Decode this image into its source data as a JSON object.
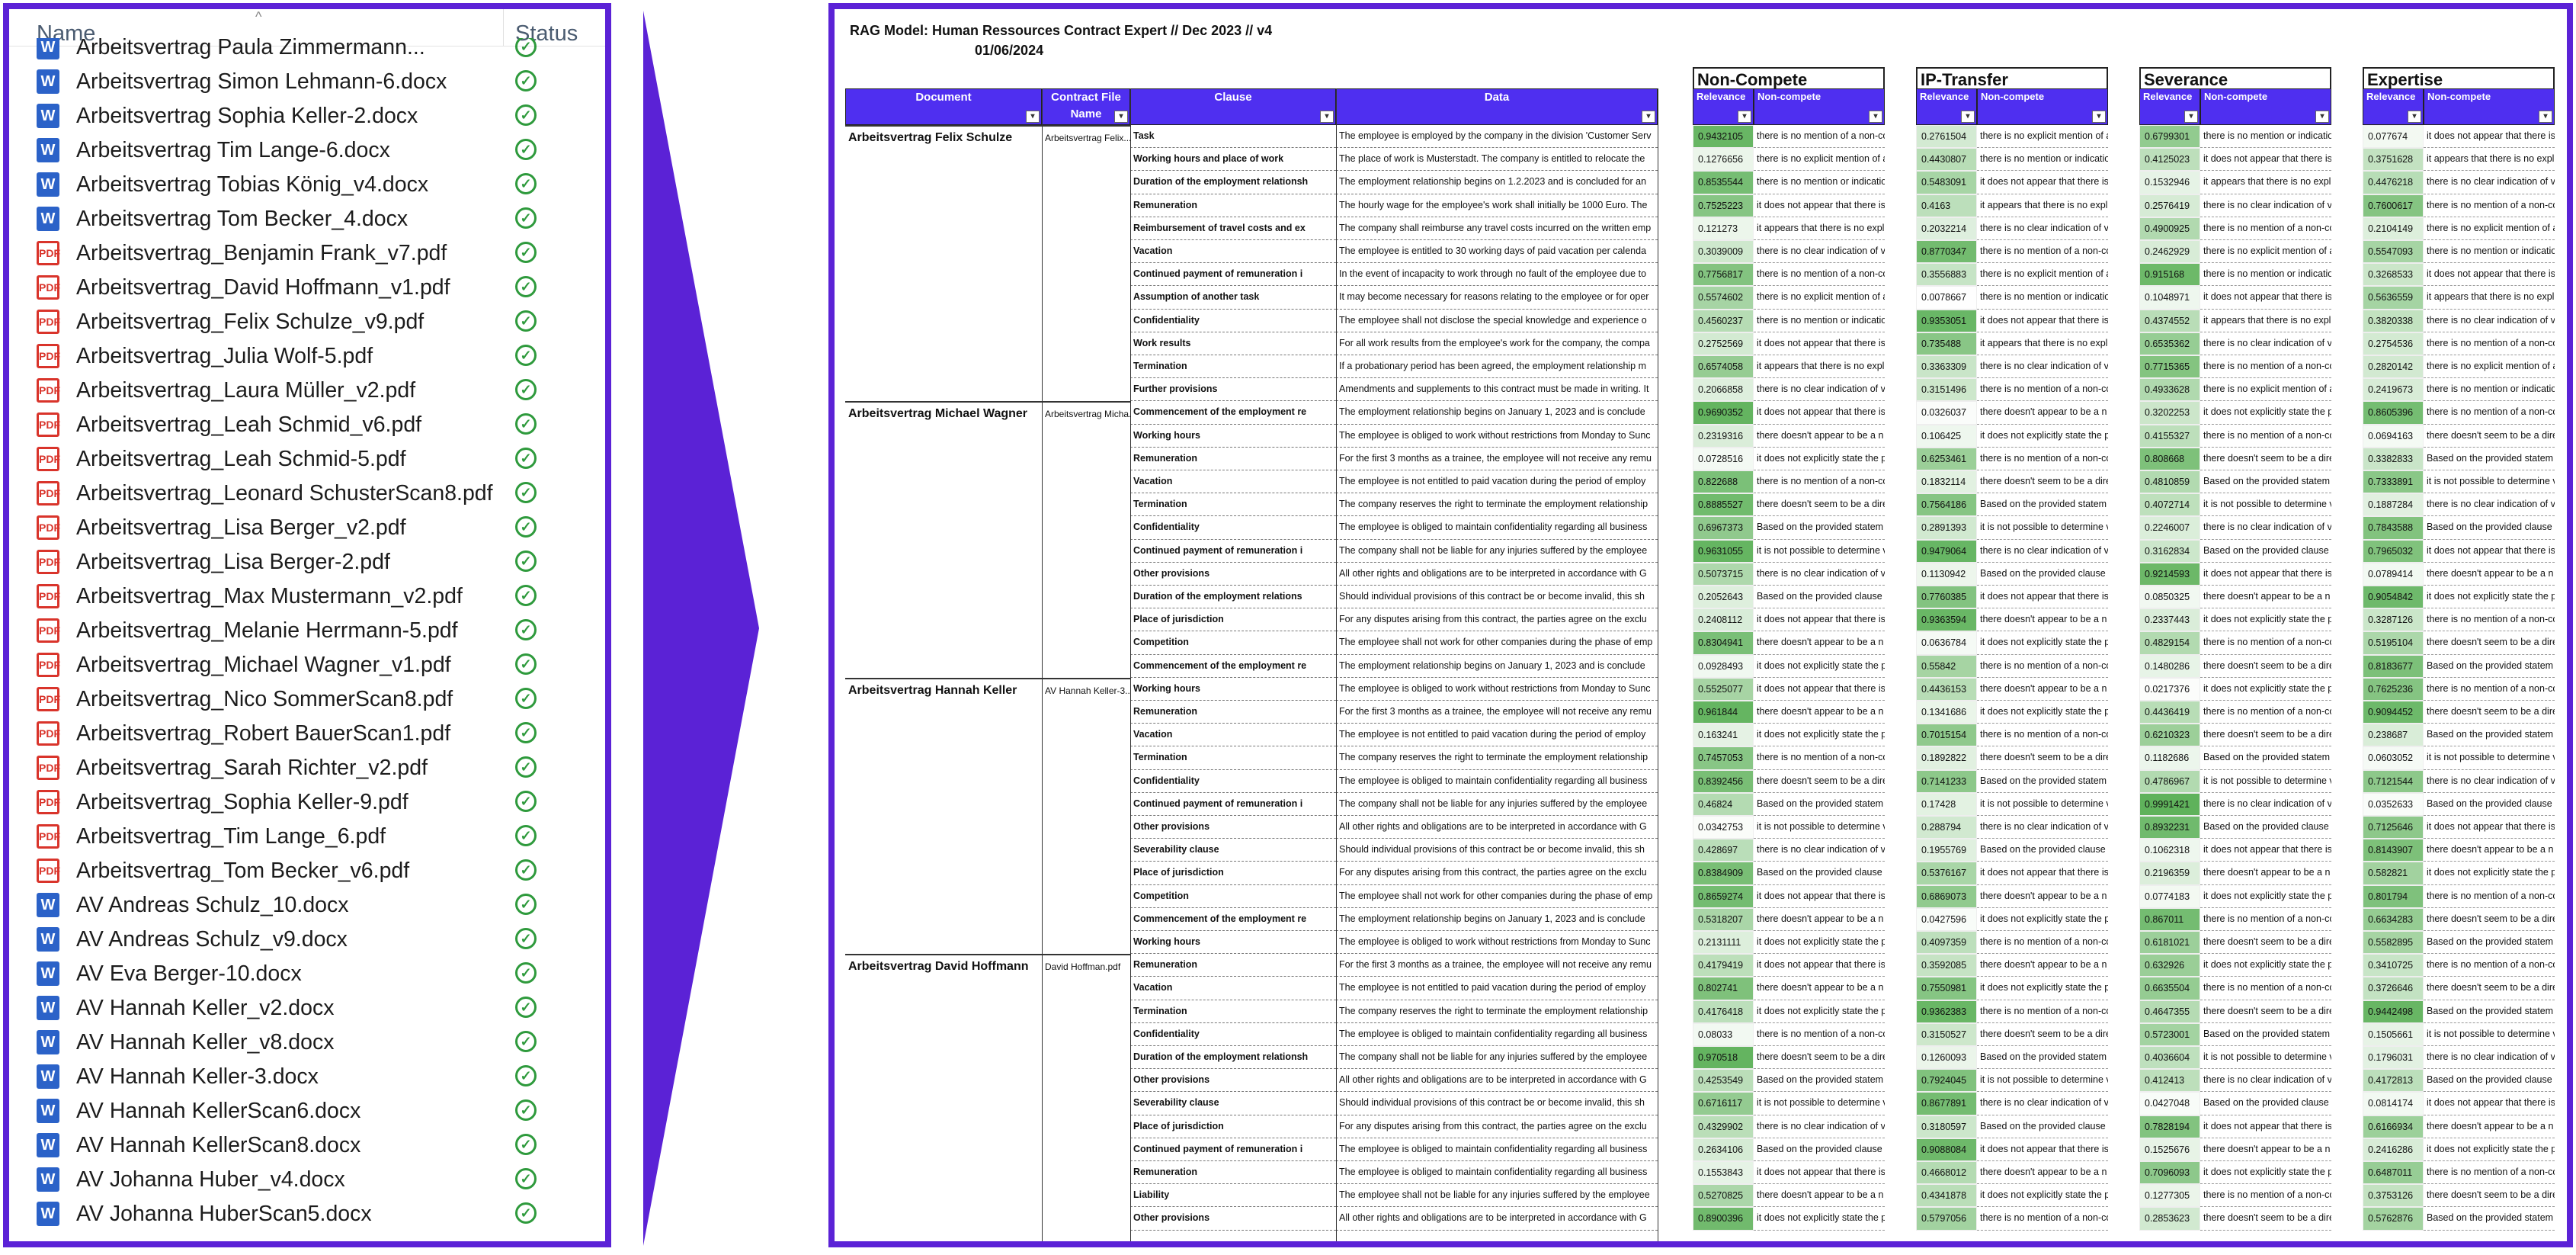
{
  "left_panel": {
    "column_name": "Name",
    "column_status": "Status",
    "files": [
      {
        "name": "Arbeitsvertrag Paula Zimmermann...",
        "type": "docx"
      },
      {
        "name": "Arbeitsvertrag Simon Lehmann-6.docx",
        "type": "docx"
      },
      {
        "name": "Arbeitsvertrag Sophia Keller-2.docx",
        "type": "docx"
      },
      {
        "name": "Arbeitsvertrag Tim Lange-6.docx",
        "type": "docx"
      },
      {
        "name": "Arbeitsvertrag Tobias König_v4.docx",
        "type": "docx"
      },
      {
        "name": "Arbeitsvertrag Tom Becker_4.docx",
        "type": "docx"
      },
      {
        "name": "Arbeitsvertrag_Benjamin Frank_v7.pdf",
        "type": "pdf"
      },
      {
        "name": "Arbeitsvertrag_David Hoffmann_v1.pdf",
        "type": "pdf"
      },
      {
        "name": "Arbeitsvertrag_Felix Schulze_v9.pdf",
        "type": "pdf"
      },
      {
        "name": "Arbeitsvertrag_Julia Wolf-5.pdf",
        "type": "pdf"
      },
      {
        "name": "Arbeitsvertrag_Laura Müller_v2.pdf",
        "type": "pdf"
      },
      {
        "name": "Arbeitsvertrag_Leah Schmid_v6.pdf",
        "type": "pdf"
      },
      {
        "name": "Arbeitsvertrag_Leah Schmid-5.pdf",
        "type": "pdf"
      },
      {
        "name": "Arbeitsvertrag_Leonard SchusterScan8.pdf",
        "type": "pdf"
      },
      {
        "name": "Arbeitsvertrag_Lisa Berger_v2.pdf",
        "type": "pdf"
      },
      {
        "name": "Arbeitsvertrag_Lisa Berger-2.pdf",
        "type": "pdf"
      },
      {
        "name": "Arbeitsvertrag_Max Mustermann_v2.pdf",
        "type": "pdf"
      },
      {
        "name": "Arbeitsvertrag_Melanie Herrmann-5.pdf",
        "type": "pdf"
      },
      {
        "name": "Arbeitsvertrag_Michael Wagner_v1.pdf",
        "type": "pdf"
      },
      {
        "name": "Arbeitsvertrag_Nico SommerScan8.pdf",
        "type": "pdf"
      },
      {
        "name": "Arbeitsvertrag_Robert BauerScan1.pdf",
        "type": "pdf"
      },
      {
        "name": "Arbeitsvertrag_Sarah Richter_v2.pdf",
        "type": "pdf"
      },
      {
        "name": "Arbeitsvertrag_Sophia Keller-9.pdf",
        "type": "pdf"
      },
      {
        "name": "Arbeitsvertrag_Tim Lange_6.pdf",
        "type": "pdf"
      },
      {
        "name": "Arbeitsvertrag_Tom Becker_v6.pdf",
        "type": "pdf"
      },
      {
        "name": "AV Andreas Schulz_10.docx",
        "type": "docx"
      },
      {
        "name": "AV Andreas Schulz_v9.docx",
        "type": "docx"
      },
      {
        "name": "AV Eva Berger-10.docx",
        "type": "docx"
      },
      {
        "name": "AV Hannah Keller_v2.docx",
        "type": "docx"
      },
      {
        "name": "AV Hannah Keller_v8.docx",
        "type": "docx"
      },
      {
        "name": "AV Hannah Keller-3.docx",
        "type": "docx"
      },
      {
        "name": "AV Hannah KellerScan6.docx",
        "type": "docx"
      },
      {
        "name": "AV Hannah KellerScan8.docx",
        "type": "docx"
      },
      {
        "name": "AV Johanna Huber_v4.docx",
        "type": "docx"
      },
      {
        "name": "AV Johanna HuberScan5.docx",
        "type": "docx"
      }
    ]
  },
  "sheet": {
    "title": "RAG Model: Human Ressources Contract Expert // Dec 2023 // v4",
    "date": "01/06/2024",
    "headers": {
      "document": "Document",
      "contract_file": "Contract File Name",
      "clause": "Clause",
      "data": "Data",
      "relevance": "Relevance",
      "non_compete": "Non-compete"
    },
    "groups": [
      "Non-Compete",
      "IP-Transfer",
      "Severance",
      "Expertise"
    ],
    "documents": [
      {
        "name": "Arbeitsvertrag Felix Schulze",
        "file": "Arbeitsvertrag Felix...",
        "rows": [
          {
            "clause": "Task",
            "data": "The employee is employed by the company in the division 'Customer Serv",
            "r": [
              0.9432105,
              0.2761504,
              0.6799301,
              0.077674
            ]
          },
          {
            "clause": "Working hours and place of work",
            "data": "The place of work is Musterstadt. The company is entitled to relocate the",
            "r": [
              0.1276656,
              0.4430807,
              0.4125023,
              0.3751628
            ]
          },
          {
            "clause": "Duration of the employment relationsh",
            "data": "The employment relationship begins on 1.2.2023 and is concluded for an",
            "r": [
              0.8535544,
              0.5483091,
              0.1532946,
              0.4476218
            ]
          },
          {
            "clause": "Remuneration",
            "data": "The hourly wage for the employee's work shall initially be 1000 Euro. The",
            "r": [
              0.7525223,
              0.4163,
              0.2576419,
              0.7600617
            ]
          },
          {
            "clause": "Reimbursement of travel costs and ex",
            "data": "The company shall reimburse any travel costs incurred on the written emp",
            "r": [
              0.121273,
              0.2032214,
              0.4900925,
              0.2104149
            ]
          },
          {
            "clause": "Vacation",
            "data": "The employee is entitled to 30 working days of paid vacation per calenda",
            "r": [
              0.3039009,
              0.8770347,
              0.2462929,
              0.5547093
            ]
          },
          {
            "clause": "Continued payment of remuneration i",
            "data": "In the event of incapacity to work through no fault of the employee due to",
            "r": [
              0.7756817,
              0.3556883,
              0.915168,
              0.3268533
            ]
          },
          {
            "clause": "Assumption of another task",
            "data": "It may become necessary for reasons relating to the employee or for oper",
            "r": [
              0.5574602,
              0.0078667,
              0.1048971,
              0.5636559
            ]
          },
          {
            "clause": "Confidentiality",
            "data": "The employee shall not disclose the special knowledge and experience o",
            "r": [
              0.4560237,
              0.9353051,
              0.4374552,
              0.3820338
            ]
          },
          {
            "clause": "Work results",
            "data": "For all work results from the employee's work for the company, the compa",
            "r": [
              0.2752569,
              0.735488,
              0.6535362,
              0.2754536
            ]
          },
          {
            "clause": "Termination",
            "data": "If a probationary period has been agreed, the employment relationship m",
            "r": [
              0.6574058,
              0.3363309,
              0.7715365,
              0.2820142
            ]
          },
          {
            "clause": "Further provisions",
            "data": "Amendments and supplements to this contract must be made in writing. It",
            "r": [
              0.2066858,
              0.3151496,
              0.4933628,
              0.2419673
            ]
          }
        ]
      },
      {
        "name": "Arbeitsvertrag Michael Wagner",
        "file": "Arbeitsvertrag Micha...",
        "rows": [
          {
            "clause": "Commencement of the employment re",
            "data": "The employment relationship begins on January 1, 2023 and is conclude",
            "r": [
              0.9690352,
              0.0326037,
              0.3202253,
              0.8605396
            ]
          },
          {
            "clause": "Working hours",
            "data": "The employee is obliged to work without restrictions from Monday to Sunc",
            "r": [
              0.2319316,
              0.106425,
              0.4155327,
              0.0694163
            ]
          },
          {
            "clause": "Remuneration",
            "data": "For the first 3 months as a trainee, the employee will not receive any remu",
            "r": [
              0.0728516,
              0.6253461,
              0.808668,
              0.3382833
            ]
          },
          {
            "clause": "Vacation",
            "data": "The employee is not entitled to paid vacation during the period of employ",
            "r": [
              0.822688,
              0.1832114,
              0.4810859,
              0.7333891
            ]
          },
          {
            "clause": "Termination",
            "data": "The company reserves the right to terminate the employment relationship",
            "r": [
              0.8885527,
              0.7564186,
              0.4072714,
              0.1887284
            ]
          },
          {
            "clause": "Confidentiality",
            "data": "The employee is obliged to maintain confidentiality regarding all business",
            "r": [
              0.6967373,
              0.2891393,
              0.2246007,
              0.7843588
            ]
          },
          {
            "clause": "Continued payment of remuneration i",
            "data": "The company shall not be liable for any injuries suffered by the employee",
            "r": [
              0.9631055,
              0.9479064,
              0.3162834,
              0.7965032
            ]
          },
          {
            "clause": "Other provisions",
            "data": "All other rights and obligations are to be interpreted in accordance with G",
            "r": [
              0.5073715,
              0.1130942,
              0.9214593,
              0.0789414
            ]
          },
          {
            "clause": "Duration of the employment relations",
            "data": "Should individual provisions of this contract be or become invalid, this sh",
            "r": [
              0.2052643,
              0.7760385,
              0.0850325,
              0.9054842
            ]
          },
          {
            "clause": "Place of jurisdiction",
            "data": "For any disputes arising from this contract, the parties agree on the exclu",
            "r": [
              0.2408112,
              0.9363594,
              0.2337443,
              0.3287126
            ]
          },
          {
            "clause": "Competition",
            "data": "The employee shall not work for other companies during the phase of emp",
            "r": [
              0.8304941,
              0.0636784,
              0.4829154,
              0.5195104
            ]
          },
          {
            "clause": "Commencement of the employment re",
            "data": "The employment relationship begins on January 1, 2023 and is conclude",
            "r": [
              0.0928493,
              0.55842,
              0.1480286,
              0.8183677
            ]
          }
        ]
      },
      {
        "name": "Arbeitsvertrag Hannah Keller",
        "file": "AV Hannah Keller-3...",
        "rows": [
          {
            "clause": "Working hours",
            "data": "The employee is obliged to work without restrictions from Monday to Sunc",
            "r": [
              0.5525077,
              0.4436153,
              0.0217376,
              0.7625236
            ]
          },
          {
            "clause": "Remuneration",
            "data": "For the first 3 months as a trainee, the employee will not receive any remu",
            "r": [
              0.961844,
              0.1341686,
              0.4436419,
              0.9094452
            ]
          },
          {
            "clause": "Vacation",
            "data": "The employee is not entitled to paid vacation during the period of employ",
            "r": [
              0.163241,
              0.7015154,
              0.6210323,
              0.238687
            ]
          },
          {
            "clause": "Termination",
            "data": "The company reserves the right to terminate the employment relationship",
            "r": [
              0.7457053,
              0.1892822,
              0.1182686,
              0.0603052
            ]
          },
          {
            "clause": "Confidentiality",
            "data": "The employee is obliged to maintain confidentiality regarding all business",
            "r": [
              0.8392456,
              0.7141233,
              0.4786967,
              0.7121544
            ]
          },
          {
            "clause": "Continued payment of remuneration i",
            "data": "The company shall not be liable for any injuries suffered by the employee",
            "r": [
              0.46824,
              0.17428,
              0.9991421,
              0.0352633
            ]
          },
          {
            "clause": "Other provisions",
            "data": "All other rights and obligations are to be interpreted in accordance with G",
            "r": [
              0.0342753,
              0.288794,
              0.8932231,
              0.7125646
            ]
          },
          {
            "clause": "Severability clause",
            "data": "Should individual provisions of this contract be or become invalid, this sh",
            "r": [
              0.428697,
              0.1955769,
              0.1062318,
              0.8143907
            ]
          },
          {
            "clause": "Place of jurisdiction",
            "data": "For any disputes arising from this contract, the parties agree on the exclu",
            "r": [
              0.8384909,
              0.5376167,
              0.2196359,
              0.582821
            ]
          },
          {
            "clause": "Competition",
            "data": "The employee shall not work for other companies during the phase of emp",
            "r": [
              0.8659274,
              0.6869073,
              0.0774183,
              0.801794
            ]
          },
          {
            "clause": "Commencement of the employment re",
            "data": "The employment relationship begins on January 1, 2023 and is conclude",
            "r": [
              0.5318207,
              0.0427596,
              0.867011,
              0.6634283
            ]
          },
          {
            "clause": "Working hours",
            "data": "The employee is obliged to work without restrictions from Monday to Sunc",
            "r": [
              0.2131111,
              0.4097359,
              0.6181021,
              0.5582895
            ]
          }
        ]
      },
      {
        "name": "Arbeitsvertrag David Hoffmann",
        "file": "David Hoffman.pdf",
        "rows": [
          {
            "clause": "Remuneration",
            "data": "For the first 3 months as a trainee, the employee will not receive any remu",
            "r": [
              0.4179419,
              0.3592085,
              0.632926,
              0.3410725
            ]
          },
          {
            "clause": "Vacation",
            "data": "The employee is not entitled to paid vacation during the period of employ",
            "r": [
              0.802741,
              0.7550981,
              0.6635504,
              0.3726646
            ]
          },
          {
            "clause": "Termination",
            "data": "The company reserves the right to terminate the employment relationship",
            "r": [
              0.4176418,
              0.9362383,
              0.4647355,
              0.9442498
            ]
          },
          {
            "clause": "Confidentiality",
            "data": "The employee is obliged to maintain confidentiality regarding all business",
            "r": [
              0.08033,
              0.3150527,
              0.5723001,
              0.1505661
            ]
          },
          {
            "clause": "Duration of the employment relationsh",
            "data": "The company shall not be liable for any injuries suffered by the employee",
            "r": [
              0.970518,
              0.1260093,
              0.4036604,
              0.1796031
            ]
          },
          {
            "clause": "Other provisions",
            "data": "All other rights and obligations are to be interpreted in accordance with G",
            "r": [
              0.4253549,
              0.7924045,
              0.412413,
              0.4172813
            ]
          },
          {
            "clause": "Severability clause",
            "data": "Should individual provisions of this contract be or become invalid, this sh",
            "r": [
              0.6716117,
              0.8677891,
              0.0427048,
              0.0814174
            ]
          },
          {
            "clause": "Place of jurisdiction",
            "data": "For any disputes arising from this contract, the parties agree on the exclu",
            "r": [
              0.4329902,
              0.3180597,
              0.7828194,
              0.6166934
            ]
          },
          {
            "clause": "Continued payment of remuneration i",
            "data": "The employee is obliged to maintain confidentiality regarding all business",
            "r": [
              0.2634106,
              0.9088084,
              0.1525676,
              0.2416286
            ]
          },
          {
            "clause": "Remuneration",
            "data": "The employee is obliged to maintain confidentiality regarding all business",
            "r": [
              0.1553843,
              0.4668012,
              0.7096093,
              0.6487011
            ]
          },
          {
            "clause": "Liability",
            "data": "The employee shall not be liable for any injuries suffered by the employee",
            "r": [
              0.5270825,
              0.4341878,
              0.1277305,
              0.3753126
            ]
          },
          {
            "clause": "Other provisions",
            "data": "All other rights and obligations are to be interpreted in accordance with G",
            "r": [
              0.8900396,
              0.5797056,
              0.2853623,
              0.5762876
            ]
          }
        ]
      }
    ],
    "answer_texts": {
      "no_mention": "there is no mention of a non-co",
      "no_explicit": "there is no explicit mention of a",
      "no_indication": "there is no mention or indicatio",
      "does_not_appear": "it does not appear that there is",
      "appears_no": "it appears that there is no expli",
      "no_clear": "there is no clear indication of v",
      "doesnt_appear": "there doesn't appear to be a n",
      "not_explicitly": "it does not explicitly state the p",
      "doesnt_seem": "there doesn't seem to be a direc",
      "based_on": "Based on the provided statem",
      "not_possible": "it is not possible to determine v",
      "based_clause": "Based on the provided clause"
    },
    "colors": {
      "accent": "#5b22d6",
      "header": "#4f2ff0",
      "scale_low": "#ffffff",
      "scale_high": "#5fb25b"
    }
  }
}
